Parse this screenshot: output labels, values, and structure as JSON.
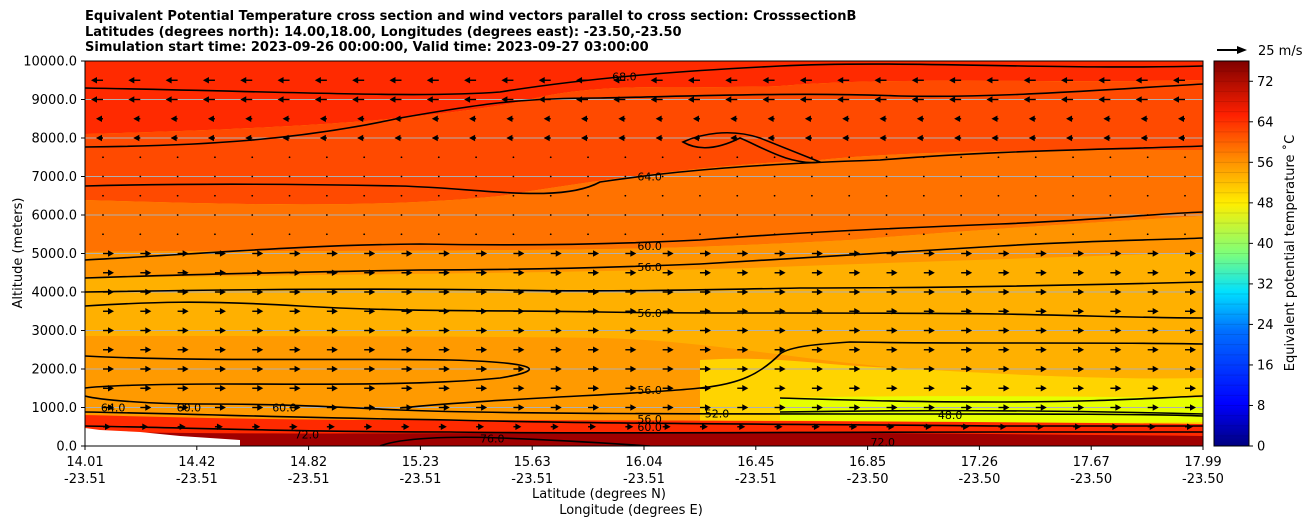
{
  "title_lines": [
    "Equivalent Potential Temperature cross section and wind vectors parallel to cross section: CrosssectionB",
    "Latitudes (degrees north): 14.00,18.00, Longitudes (degrees east): -23.50,-23.50",
    "Simulation start time: 2023-09-26 00:00:00, Valid time: 2023-09-27 03:00:00"
  ],
  "chart_data": {
    "type": "contour-cross-section",
    "ylabel": "Altitude (meters)",
    "xlabel_lat": "Latitude (degrees N)",
    "xlabel_lon": "Longitude (degrees E)",
    "ylim": [
      0,
      10000
    ],
    "y_ticks": [
      "0.0",
      "1000.0",
      "2000.0",
      "3000.0",
      "4000.0",
      "5000.0",
      "6000.0",
      "7000.0",
      "8000.0",
      "9000.0",
      "10000.0"
    ],
    "y_tick_values": [
      0,
      1000,
      2000,
      3000,
      4000,
      5000,
      6000,
      7000,
      8000,
      9000,
      10000
    ],
    "x_ticks": [
      {
        "lat": "14.01",
        "lon": "-23.51"
      },
      {
        "lat": "14.42",
        "lon": "-23.51"
      },
      {
        "lat": "14.82",
        "lon": "-23.51"
      },
      {
        "lat": "15.23",
        "lon": "-23.51"
      },
      {
        "lat": "15.63",
        "lon": "-23.51"
      },
      {
        "lat": "16.04",
        "lon": "-23.51"
      },
      {
        "lat": "16.45",
        "lon": "-23.51"
      },
      {
        "lat": "16.85",
        "lon": "-23.50"
      },
      {
        "lat": "17.26",
        "lon": "-23.50"
      },
      {
        "lat": "17.67",
        "lon": "-23.50"
      },
      {
        "lat": "17.99",
        "lon": "-23.50"
      }
    ],
    "colorbar": {
      "label": "Equivalent potential temperature $^\\circ$C",
      "display_label": "Equivalent potential temperature ˚C",
      "range": [
        0,
        76
      ],
      "ticks": [
        0,
        8,
        16,
        24,
        32,
        40,
        48,
        56,
        64,
        72
      ],
      "tick_labels": [
        "0",
        "8",
        "16",
        "24",
        "32",
        "40",
        "48",
        "56",
        "64",
        "72"
      ]
    },
    "wind_key": {
      "label": "25 m/s",
      "speed": 25
    },
    "contour_labels": [
      {
        "text": "68.0",
        "altitude": 9600,
        "lat": 15.93
      },
      {
        "text": "64.0",
        "altitude": 7000,
        "lat": 16.02
      },
      {
        "text": "60.0",
        "altitude": 5200,
        "lat": 16.02
      },
      {
        "text": "56.0",
        "altitude": 4650,
        "lat": 16.02
      },
      {
        "text": "56.0",
        "altitude": 3450,
        "lat": 16.02
      },
      {
        "text": "56.0",
        "altitude": 1450,
        "lat": 16.02
      },
      {
        "text": "56.0",
        "altitude": 700,
        "lat": 16.02
      },
      {
        "text": "60.0",
        "altitude": 500,
        "lat": 16.02
      },
      {
        "text": "52.0",
        "altitude": 850,
        "lat": 16.26
      },
      {
        "text": "48.0",
        "altitude": 800,
        "lat": 17.09
      },
      {
        "text": "72.0",
        "altitude": 100,
        "lat": 16.85
      },
      {
        "text": "64.0",
        "altitude": 1000,
        "lat": 14.11
      },
      {
        "text": "60.0",
        "altitude": 1000,
        "lat": 14.38
      },
      {
        "text": "60.0",
        "altitude": 1000,
        "lat": 14.72
      },
      {
        "text": "72.0",
        "altitude": 300,
        "lat": 14.8
      },
      {
        "text": "76.0",
        "altitude": 200,
        "lat": 15.46
      }
    ],
    "theta_e_profile": {
      "description": "approximate equivalent potential temperature bands (deg C) by altitude",
      "altitude": [
        0,
        500,
        1000,
        2000,
        3000,
        4000,
        5000,
        6000,
        7000,
        8000,
        9000,
        10000
      ],
      "south_end": [
        72,
        66,
        62,
        58,
        57,
        56,
        59,
        62,
        64,
        66,
        70,
        72
      ],
      "north_end": [
        72,
        62,
        50,
        54,
        56,
        56,
        58,
        62,
        64,
        66,
        68,
        70
      ]
    },
    "wind_direction_by_altitude": {
      "description": "dominant horizontal wind parallel to section",
      "above_8000m": "toward south (left)",
      "5000_to_8000m": "weak",
      "below_5000m": "toward north (right)"
    }
  }
}
